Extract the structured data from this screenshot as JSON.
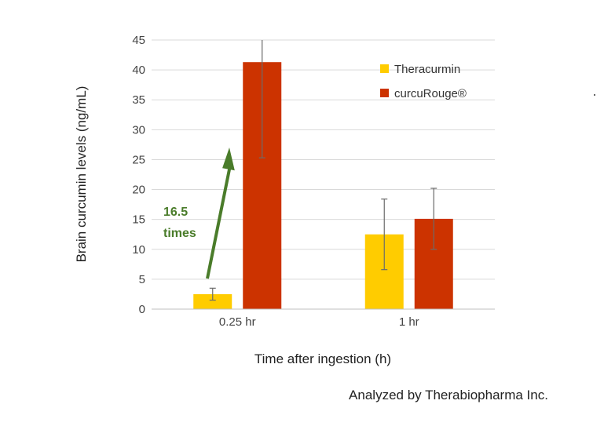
{
  "chart_data": {
    "type": "bar",
    "categories": [
      "0.25 hr",
      "1 hr"
    ],
    "series": [
      {
        "name": "Theracurmin",
        "color": "#FFCC00",
        "values": [
          2.5,
          12.5
        ],
        "error": [
          1.0,
          5.9
        ]
      },
      {
        "name": "curcuRouge®",
        "color": "#CC3300",
        "values": [
          41.3,
          15.1
        ],
        "error": [
          16.0,
          5.1
        ]
      }
    ],
    "xlabel": "Time after ingestion (h)",
    "ylabel": "Brain curcumin levels (ng/mL)",
    "ylim": [
      0,
      45
    ],
    "yticks": [
      0,
      5,
      10,
      15,
      20,
      25,
      30,
      35,
      40,
      45
    ],
    "grid": true,
    "legend": "top-right",
    "annotation": {
      "text_line1": "16.5",
      "text_line2": "times",
      "color": "#4A7C2A"
    },
    "credit": "Analyzed by Therabiopharma Inc."
  }
}
